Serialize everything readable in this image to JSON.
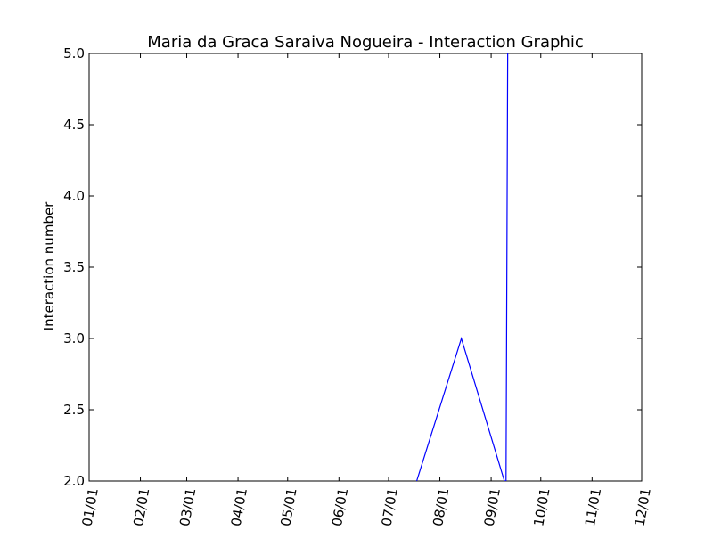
{
  "chart_data": {
    "type": "line",
    "title": "Maria da Graca Saraiva Nogueira - Interaction Graphic",
    "xlabel": "",
    "ylabel": "Interaction number",
    "x_ticks": [
      "01/01",
      "02/01",
      "03/01",
      "04/01",
      "05/01",
      "06/01",
      "07/01",
      "08/01",
      "09/01",
      "10/01",
      "11/01",
      "12/01"
    ],
    "y_ticks": [
      "2.0",
      "2.5",
      "3.0",
      "3.5",
      "4.0",
      "4.5",
      "5.0"
    ],
    "ylim": [
      2.0,
      5.0
    ],
    "xlim": [
      "01/01",
      "12/01"
    ],
    "grid": false,
    "series": [
      {
        "color": "#0000ff",
        "x": [
          "07/18",
          "08/14",
          "09/09",
          "09/10",
          "09/11"
        ],
        "y": [
          2.0,
          3.0,
          2.0,
          2.0,
          5.0
        ]
      }
    ]
  }
}
